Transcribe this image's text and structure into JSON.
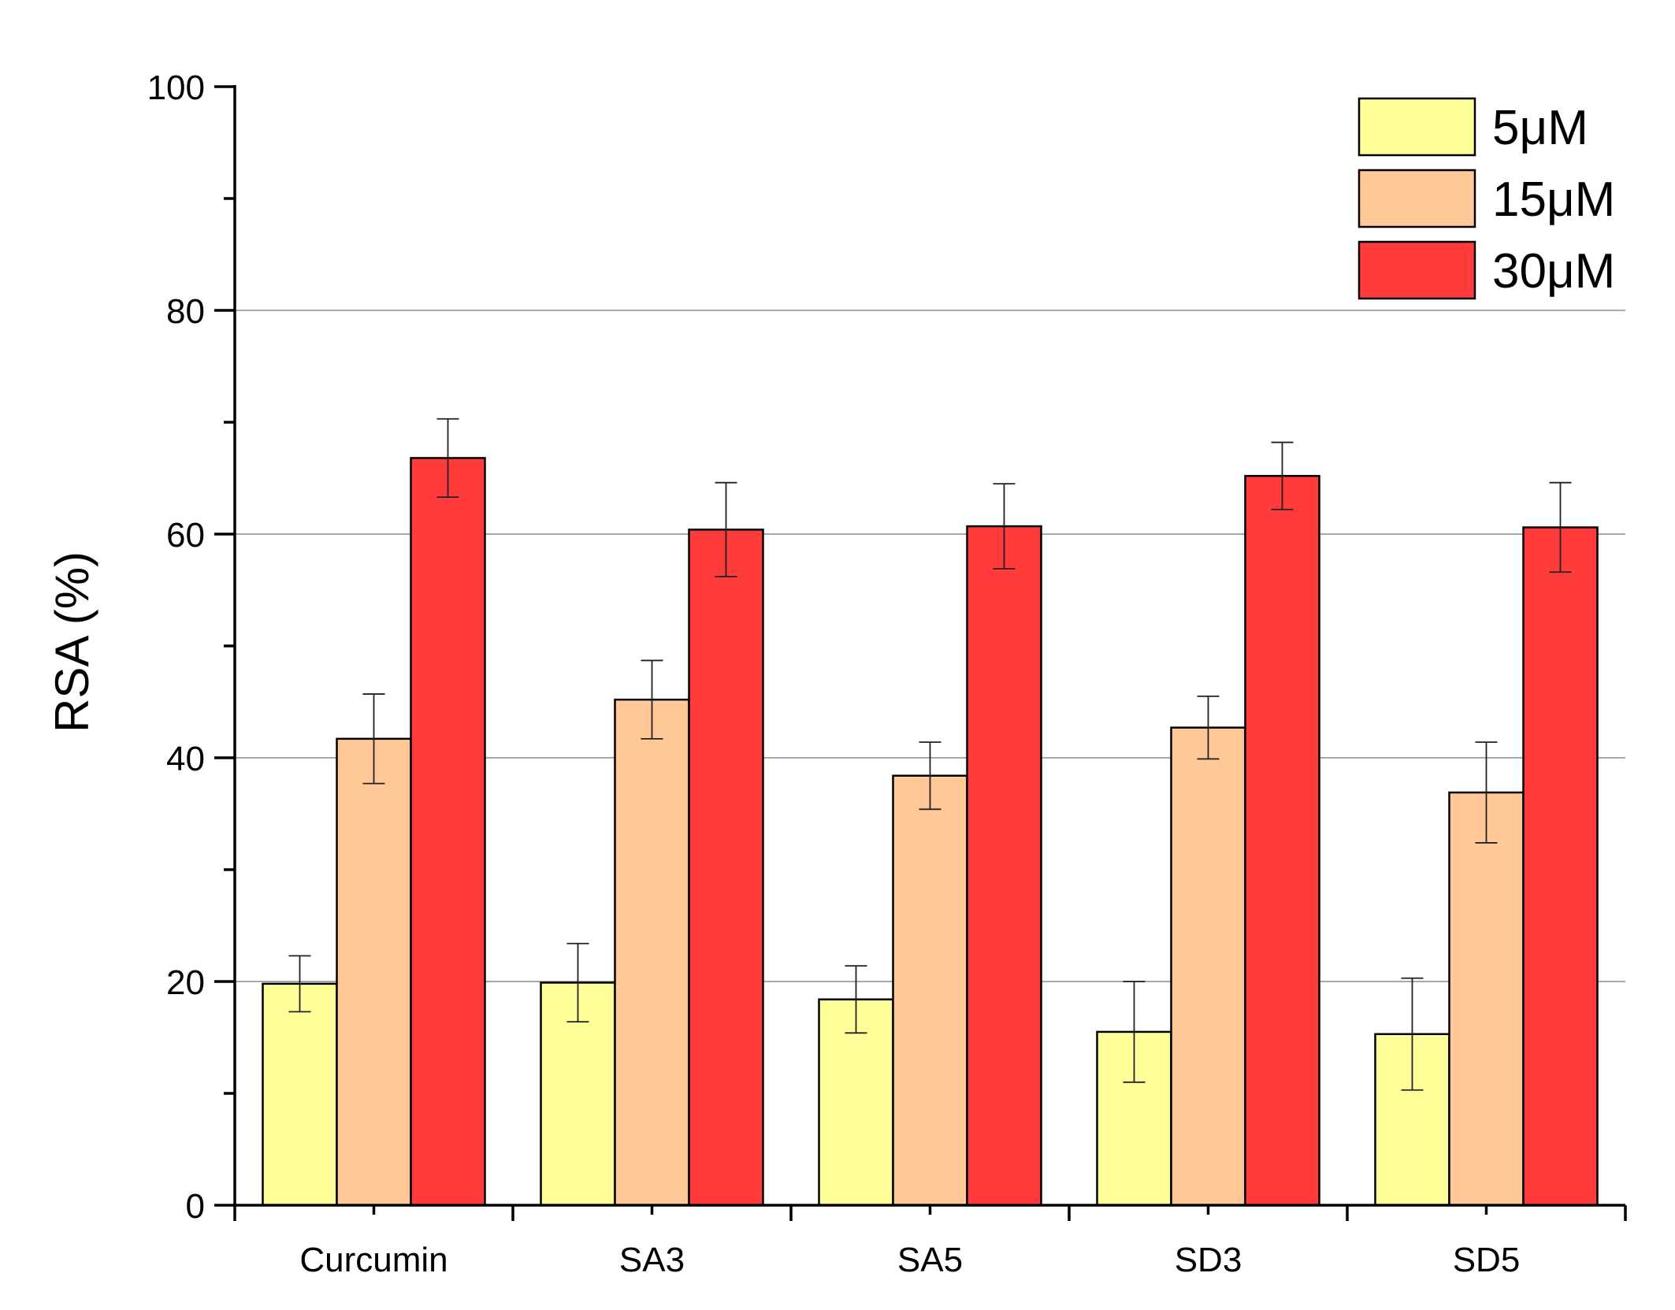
{
  "chart_data": {
    "type": "bar",
    "title": "",
    "xlabel": "",
    "ylabel": "RSA (%)",
    "ylim": [
      0,
      100
    ],
    "yticks": [
      0,
      20,
      40,
      60,
      80,
      100
    ],
    "grid": "horizontal",
    "legend_position": "top-right",
    "categories": [
      "Curcumin",
      "SA3",
      "SA5",
      "SD3",
      "SD5"
    ],
    "series": [
      {
        "name": "5μM",
        "color": "#ffff99",
        "values": [
          19.8,
          19.9,
          18.4,
          15.5,
          15.3
        ],
        "errors": [
          2.5,
          3.5,
          3.0,
          4.5,
          5.0
        ]
      },
      {
        "name": "15μM",
        "color": "#ffc896",
        "values": [
          41.7,
          45.2,
          38.4,
          42.7,
          36.9
        ],
        "errors": [
          4.0,
          3.5,
          3.0,
          2.8,
          4.5
        ]
      },
      {
        "name": "30μM",
        "color": "#ff3b3b",
        "values": [
          66.8,
          60.4,
          60.7,
          65.2,
          60.6
        ],
        "errors": [
          3.5,
          4.2,
          3.8,
          3.0,
          4.0
        ]
      }
    ]
  }
}
